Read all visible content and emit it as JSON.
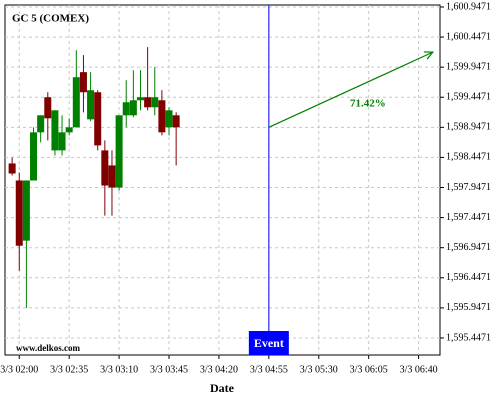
{
  "chart_data": {
    "type": "candlestick",
    "title": "GC 5 (COMEX)",
    "watermark": "www.delkos.com",
    "xlabel": "Date",
    "x": [
      "3/3 01:55",
      "3/3 02:00",
      "3/3 02:05",
      "3/3 02:10",
      "3/3 02:15",
      "3/3 02:20",
      "3/3 02:25",
      "3/3 02:30",
      "3/3 02:35",
      "3/3 02:40",
      "3/3 02:45",
      "3/3 02:50",
      "3/3 02:55",
      "3/3 03:00",
      "3/3 03:05",
      "3/3 03:10",
      "3/3 03:15",
      "3/3 03:20",
      "3/3 03:25",
      "3/3 03:30",
      "3/3 03:35",
      "3/3 03:40",
      "3/3 03:45",
      "3/3 03:50"
    ],
    "open": [
      1598.347,
      1598.064,
      1597.064,
      1598.064,
      1598.864,
      1599.447,
      1598.564,
      1598.564,
      1598.864,
      1598.947,
      1599.864,
      1599.08,
      1599.53,
      1598.564,
      1598.314,
      1597.947,
      1599.147,
      1599.147,
      1599.397,
      1599.447,
      1599.28,
      1599.397,
      1598.947,
      1599.147
    ],
    "high": [
      1598.447,
      1598.197,
      1598.064,
      1598.947,
      1599.147,
      1599.53,
      1599.23,
      1599.147,
      1599.097,
      1600.23,
      1600.147,
      1599.864,
      1599.564,
      1598.73,
      1598.564,
      1599.147,
      1599.73,
      1599.897,
      1599.897,
      1600.28,
      1599.947,
      1599.564,
      1599.28,
      1599.197
    ],
    "low": [
      1598.147,
      1596.564,
      1595.947,
      1598.064,
      1598.697,
      1598.73,
      1598.48,
      1598.48,
      1598.814,
      1598.947,
      1599.197,
      1599.047,
      1598.564,
      1597.48,
      1597.48,
      1597.897,
      1598.947,
      1599.114,
      1599.23,
      1599.23,
      1599.147,
      1598.814,
      1598.814,
      1598.314
    ],
    "close": [
      1598.18,
      1596.98,
      1598.064,
      1598.864,
      1599.147,
      1599.097,
      1599.23,
      1598.864,
      1598.947,
      1599.78,
      1599.53,
      1599.564,
      1598.647,
      1597.98,
      1597.947,
      1599.147,
      1599.364,
      1599.397,
      1599.447,
      1599.28,
      1599.447,
      1598.864,
      1599.23,
      1598.947
    ],
    "up_color": "#008000",
    "down_color": "#800000",
    "xlim": [
      "3/3 01:50",
      "3/3 06:55"
    ],
    "xticks": [
      "3/3 02:00",
      "3/3 02:35",
      "3/3 03:10",
      "3/3 03:45",
      "3/3 04:20",
      "3/3 04:55",
      "3/3 05:30",
      "3/3 06:05",
      "3/3 06:40"
    ],
    "ylim": [
      1595.164,
      1600.98
    ],
    "yticks": [
      {
        "value": 1595.4471,
        "label": "1,595.4471"
      },
      {
        "value": 1595.9471,
        "label": "1,595.9471"
      },
      {
        "value": 1596.4471,
        "label": "1,596.4471"
      },
      {
        "value": 1596.9471,
        "label": "1,596.9471"
      },
      {
        "value": 1597.4471,
        "label": "1,597.4471"
      },
      {
        "value": 1597.9471,
        "label": "1,597.9471"
      },
      {
        "value": 1598.4471,
        "label": "1,598.4471"
      },
      {
        "value": 1598.9471,
        "label": "1,598.9471"
      },
      {
        "value": 1599.4471,
        "label": "1,599.4471"
      },
      {
        "value": 1599.9471,
        "label": "1,599.9471"
      },
      {
        "value": 1600.4471,
        "label": "1,600.4471"
      },
      {
        "value": 1600.9471,
        "label": "1,600.9471"
      }
    ],
    "grid": true,
    "event": {
      "x": "3/3 04:55",
      "label": "Event",
      "color": "#0000ff"
    },
    "arrow": {
      "x": [
        "3/3 04:55",
        "3/3 06:50"
      ],
      "y": [
        1598.947,
        1600.197
      ],
      "label": "71.42%",
      "color": "#008000"
    }
  }
}
